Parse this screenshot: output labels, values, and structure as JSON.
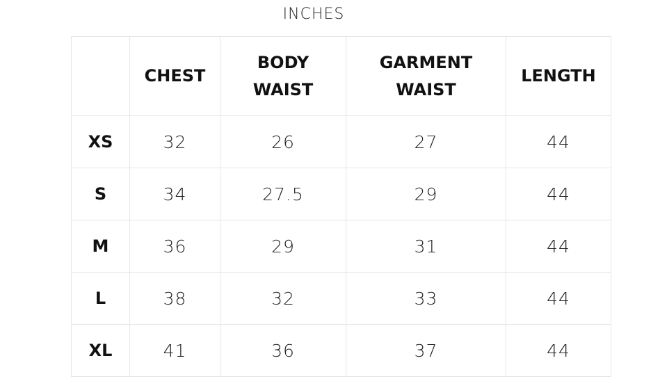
{
  "title": "INCHES",
  "table": {
    "headers": [
      "CHEST",
      "BODY WAIST",
      "GARMENT WAIST",
      "LENGTH"
    ],
    "rows": [
      {
        "size": "XS",
        "values": [
          32,
          26,
          27,
          44
        ]
      },
      {
        "size": "S",
        "values": [
          34,
          27.5,
          29,
          44
        ]
      },
      {
        "size": "M",
        "values": [
          36,
          29,
          31,
          44
        ]
      },
      {
        "size": "L",
        "values": [
          38,
          32,
          33,
          44
        ]
      },
      {
        "size": "XL",
        "values": [
          41,
          36,
          37,
          44
        ]
      }
    ]
  }
}
